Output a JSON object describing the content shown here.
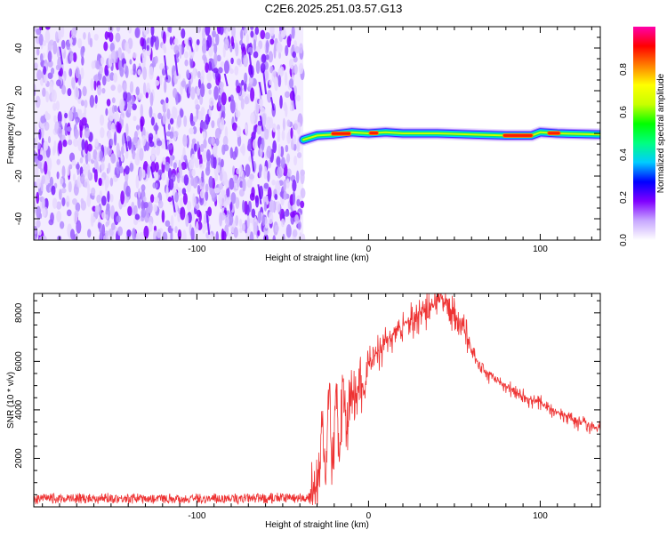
{
  "title": "C2E6.2025.251.03.57.G13",
  "chart_data": [
    {
      "type": "heatmap",
      "title": "C2E6.2025.251.03.57.G13",
      "xlabel": "Height of straight line (km)",
      "ylabel": "Frequency (Hz)",
      "xlim": [
        -195,
        135
      ],
      "ylim": [
        -50,
        50
      ],
      "x_ticks": [
        -100,
        0,
        100
      ],
      "x_tick_labels": [
        "-100",
        "0",
        "100"
      ],
      "y_ticks": [
        -40,
        -20,
        0,
        20,
        40
      ],
      "y_tick_labels": [
        "-40",
        "-20",
        "0",
        "20",
        "40"
      ],
      "noise_region_x": [
        -195,
        -38
      ],
      "signal_ridge": {
        "x": [
          -38,
          -30,
          -20,
          -10,
          0,
          10,
          20,
          40,
          60,
          80,
          95,
          100,
          110,
          135
        ],
        "freq": [
          -3,
          -1,
          -0.5,
          0.5,
          0,
          0.5,
          0,
          0,
          -0.5,
          -1,
          -1,
          0.5,
          0,
          -0.5
        ],
        "peak_segments": [
          [
            -22,
            -10
          ],
          [
            0,
            6
          ],
          [
            78,
            96
          ],
          [
            104,
            112
          ]
        ]
      },
      "colorbar": {
        "label": "Normalized spectral amplitude",
        "ticks": [
          0.0,
          0.2,
          0.4,
          0.6,
          0.8
        ],
        "tick_labels": [
          "0.0",
          "0.2",
          "0.4",
          "0.6",
          "0.8"
        ],
        "range": [
          0,
          1
        ],
        "colors": [
          "#ffffff",
          "#c8a8ff",
          "#8000ff",
          "#0000ff",
          "#00ccff",
          "#00ff80",
          "#00ff00",
          "#c8ff00",
          "#ffff00",
          "#ff8000",
          "#ff0000",
          "#ff00aa"
        ]
      }
    },
    {
      "type": "line",
      "xlabel": "Height of straight line (km)",
      "ylabel": "SNR (10 * v/v)",
      "xlim": [
        -195,
        135
      ],
      "ylim": [
        0,
        8800
      ],
      "x_ticks": [
        -100,
        0,
        100
      ],
      "x_tick_labels": [
        "-100",
        "0",
        "100"
      ],
      "y_ticks": [
        2000,
        4000,
        6000,
        8000
      ],
      "y_tick_labels": [
        "2000",
        "4000",
        "6000",
        "8000"
      ],
      "series": [
        {
          "name": "SNR",
          "color": "#ee3333",
          "x": [
            -195,
            -150,
            -100,
            -60,
            -35,
            -30,
            -27,
            -25,
            -23,
            -21,
            -19,
            -17,
            -15,
            -12,
            -10,
            -8,
            -5,
            -2,
            0,
            5,
            10,
            15,
            20,
            25,
            30,
            35,
            40,
            42,
            45,
            50,
            55,
            60,
            65,
            70,
            75,
            80,
            85,
            90,
            95,
            100,
            105,
            110,
            115,
            120,
            125,
            130,
            135
          ],
          "values": [
            350,
            380,
            350,
            370,
            400,
            700,
            3500,
            900,
            5800,
            1500,
            5200,
            2200,
            4800,
            3400,
            5200,
            4200,
            5600,
            4700,
            6000,
            6400,
            6800,
            7200,
            7400,
            7800,
            8000,
            8200,
            8500,
            8700,
            8300,
            8000,
            7500,
            6500,
            5800,
            5500,
            5200,
            5000,
            4800,
            4600,
            4400,
            4300,
            4100,
            3900,
            3800,
            3600,
            3500,
            3400,
            3200
          ]
        }
      ]
    }
  ]
}
